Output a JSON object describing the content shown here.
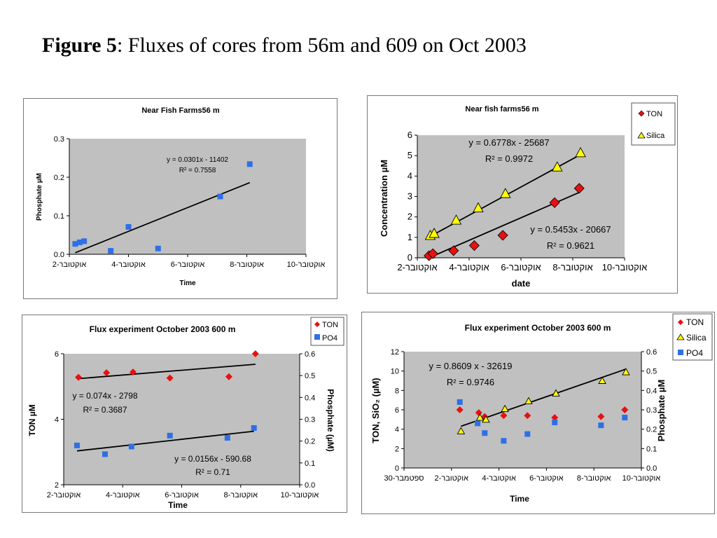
{
  "figure": {
    "title_bold": "Figure 5",
    "title_rest": ": Fluxes of cores from 56m and 609 on Oct 2003"
  },
  "colors": {
    "plot_bg": "#c0c0c0",
    "ton": "#e81010",
    "silica": "#ffff00",
    "po4": "#2f6fe6",
    "trend": "#000000"
  },
  "chart_data": [
    {
      "type": "scatter",
      "title": "Near Fish Farms56 m",
      "xlabel": "Time",
      "ylabel": "Phosphate  µM",
      "xticks": [
        "2-אוקטובר",
        "4-אוקטובר",
        "6-אוקטובר",
        "8-אוקטובר",
        "10-אוקטובר"
      ],
      "xlim": [
        2,
        10
      ],
      "ylim": [
        0,
        0.3
      ],
      "yticks": [
        "0.0",
        "0.1",
        "0.2",
        "0.3"
      ],
      "grid": false,
      "series": [
        {
          "marker": "square",
          "color": "#2f6fe6",
          "points": [
            [
              2.2,
              0.027
            ],
            [
              2.35,
              0.031
            ],
            [
              2.5,
              0.034
            ],
            [
              3.4,
              0.009
            ],
            [
              4.0,
              0.071
            ],
            [
              5.0,
              0.015
            ],
            [
              7.1,
              0.15
            ],
            [
              8.1,
              0.234
            ]
          ]
        }
      ],
      "trendlines": [
        {
          "x": [
            2.2,
            8.1
          ],
          "y": [
            0.004,
            0.186
          ]
        }
      ],
      "annotations": [
        {
          "lines": [
            "y = 0.0301x - 11402",
            "R² = 0.7558"
          ]
        }
      ]
    },
    {
      "type": "scatter",
      "title": "Near fish farms56 m",
      "xlabel": "date",
      "ylabel": "Concentration  µM",
      "xticks": [
        "2-אוקטובר",
        "4-אוקטובר",
        "6-אוקטובר",
        "8-אוקטובר",
        "10-אוקטובר"
      ],
      "xlim": [
        2,
        10
      ],
      "ylim": [
        0,
        6
      ],
      "yticks": [
        "0",
        "1",
        "2",
        "3",
        "4",
        "5",
        "6"
      ],
      "grid": false,
      "legend": {
        "position": "top-right",
        "entries": [
          "TON",
          "Silica"
        ]
      },
      "series": [
        {
          "name": "TON",
          "marker": "diamond",
          "color": "#e81010",
          "points": [
            [
              2.45,
              0.1
            ],
            [
              2.6,
              0.2
            ],
            [
              3.4,
              0.35
            ],
            [
              4.2,
              0.6
            ],
            [
              5.3,
              1.1
            ],
            [
              7.3,
              2.7
            ],
            [
              8.25,
              3.4
            ]
          ]
        },
        {
          "name": "Silica",
          "marker": "triangle",
          "color": "#ffff00",
          "points": [
            [
              2.5,
              1.1
            ],
            [
              2.65,
              1.2
            ],
            [
              3.5,
              1.85
            ],
            [
              4.35,
              2.45
            ],
            [
              5.4,
              3.15
            ],
            [
              7.4,
              4.45
            ],
            [
              8.3,
              5.15
            ]
          ]
        }
      ],
      "trendlines": [
        {
          "x": [
            2.45,
            8.25
          ],
          "y": [
            0.0,
            3.2
          ]
        },
        {
          "x": [
            2.5,
            8.3
          ],
          "y": [
            1.05,
            5.05
          ]
        }
      ],
      "annotations": [
        {
          "lines": [
            "y = 0.6778x - 25687",
            "R² = 0.9972"
          ]
        },
        {
          "lines": [
            "y = 0.5453x - 20667",
            "R² = 0.9621"
          ]
        }
      ]
    },
    {
      "type": "scatter",
      "title": "Flux experiment October  2003 600  m",
      "xlabel": "Time",
      "ylabel": "TON  µM",
      "y2label": "Phosphate  (µM)",
      "xticks": [
        "2-אוקטובר",
        "4-אוקטובר",
        "6-אוקטובר",
        "8-אוקטובר",
        "10-אוקטובר"
      ],
      "xlim": [
        2,
        10
      ],
      "ylim": [
        2,
        6
      ],
      "yticks": [
        "2",
        "4",
        "6"
      ],
      "y2lim": [
        0,
        0.6
      ],
      "y2ticks": [
        "0.0",
        "0.1",
        "0.2",
        "0.3",
        "0.4",
        "0.5",
        "0.6"
      ],
      "grid": false,
      "legend": {
        "position": "top-right",
        "entries": [
          "TON",
          "PO4"
        ]
      },
      "series": [
        {
          "name": "TON",
          "axis": "left",
          "marker": "diamond",
          "color": "#e81010",
          "points": [
            [
              2.5,
              5.28
            ],
            [
              3.45,
              5.42
            ],
            [
              4.35,
              5.44
            ],
            [
              5.6,
              5.26
            ],
            [
              7.6,
              5.3
            ],
            [
              8.5,
              6.0
            ]
          ]
        },
        {
          "name": "PO4",
          "axis": "right",
          "marker": "square",
          "color": "#2f6fe6",
          "points": [
            [
              2.45,
              0.18
            ],
            [
              3.4,
              0.14
            ],
            [
              4.3,
              0.175
            ],
            [
              5.6,
              0.225
            ],
            [
              7.55,
              0.215
            ],
            [
              8.45,
              0.26
            ]
          ]
        }
      ],
      "trendlines": [
        {
          "axis": "left",
          "x": [
            2.5,
            8.5
          ],
          "y": [
            5.24,
            5.68
          ]
        },
        {
          "axis": "right",
          "x": [
            2.45,
            8.45
          ],
          "y": [
            0.155,
            0.245
          ]
        }
      ],
      "annotations": [
        {
          "lines": [
            "y = 0.074x - 2798",
            "R² = 0.3687"
          ]
        },
        {
          "lines": [
            "y = 0.0156x - 590.68",
            "R² = 0.71"
          ]
        }
      ]
    },
    {
      "type": "scatter",
      "title": "Flux experiment October  2003 600  m",
      "xlabel": "Time",
      "ylabel": "TON, SiO₂ (µM)",
      "y2label": "Phosphate  µM",
      "xticks": [
        "30-ספטמבר",
        "2-אוקטובר",
        "4-אוקטובר",
        "6-אוקטובר",
        "8-אוקטובר",
        "10-אוקטובר"
      ],
      "xlim": [
        0,
        10
      ],
      "ylim": [
        0,
        12
      ],
      "yticks": [
        "0",
        "2",
        "4",
        "6",
        "8",
        "10",
        "12"
      ],
      "y2lim": [
        0,
        0.6
      ],
      "y2ticks": [
        "0.0",
        "0.1",
        "0.2",
        "0.3",
        "0.4",
        "0.5",
        "0.6"
      ],
      "grid": false,
      "legend": {
        "position": "top-right",
        "entries": [
          "TON",
          "Silica",
          "PO4"
        ]
      },
      "series": [
        {
          "name": "TON",
          "axis": "left",
          "marker": "diamond",
          "color": "#e81010",
          "points": [
            [
              2.35,
              6.0
            ],
            [
              3.15,
              5.7
            ],
            [
              3.4,
              5.3
            ],
            [
              4.2,
              5.4
            ],
            [
              5.2,
              5.4
            ],
            [
              6.35,
              5.2
            ],
            [
              8.3,
              5.3
            ],
            [
              9.3,
              6.0
            ]
          ]
        },
        {
          "name": "Silica",
          "axis": "left",
          "marker": "triangle",
          "color": "#ffff00",
          "points": [
            [
              2.4,
              3.8
            ],
            [
              3.2,
              5.2
            ],
            [
              3.45,
              5.0
            ],
            [
              4.25,
              6.1
            ],
            [
              5.25,
              6.9
            ],
            [
              6.4,
              7.7
            ],
            [
              8.35,
              9.0
            ],
            [
              9.35,
              9.9
            ]
          ]
        },
        {
          "name": "PO4",
          "axis": "right",
          "marker": "square",
          "color": "#2f6fe6",
          "points": [
            [
              2.35,
              0.34
            ],
            [
              3.1,
              0.23
            ],
            [
              3.4,
              0.18
            ],
            [
              4.2,
              0.14
            ],
            [
              5.2,
              0.175
            ],
            [
              6.35,
              0.235
            ],
            [
              8.3,
              0.22
            ],
            [
              9.3,
              0.26
            ]
          ]
        }
      ],
      "trendlines": [
        {
          "axis": "left",
          "x": [
            2.4,
            9.35
          ],
          "y": [
            4.3,
            10.2
          ]
        }
      ],
      "annotations": [
        {
          "lines": [
            "y = 0.8609 x - 32619",
            "R² = 0.9746"
          ]
        }
      ]
    }
  ]
}
